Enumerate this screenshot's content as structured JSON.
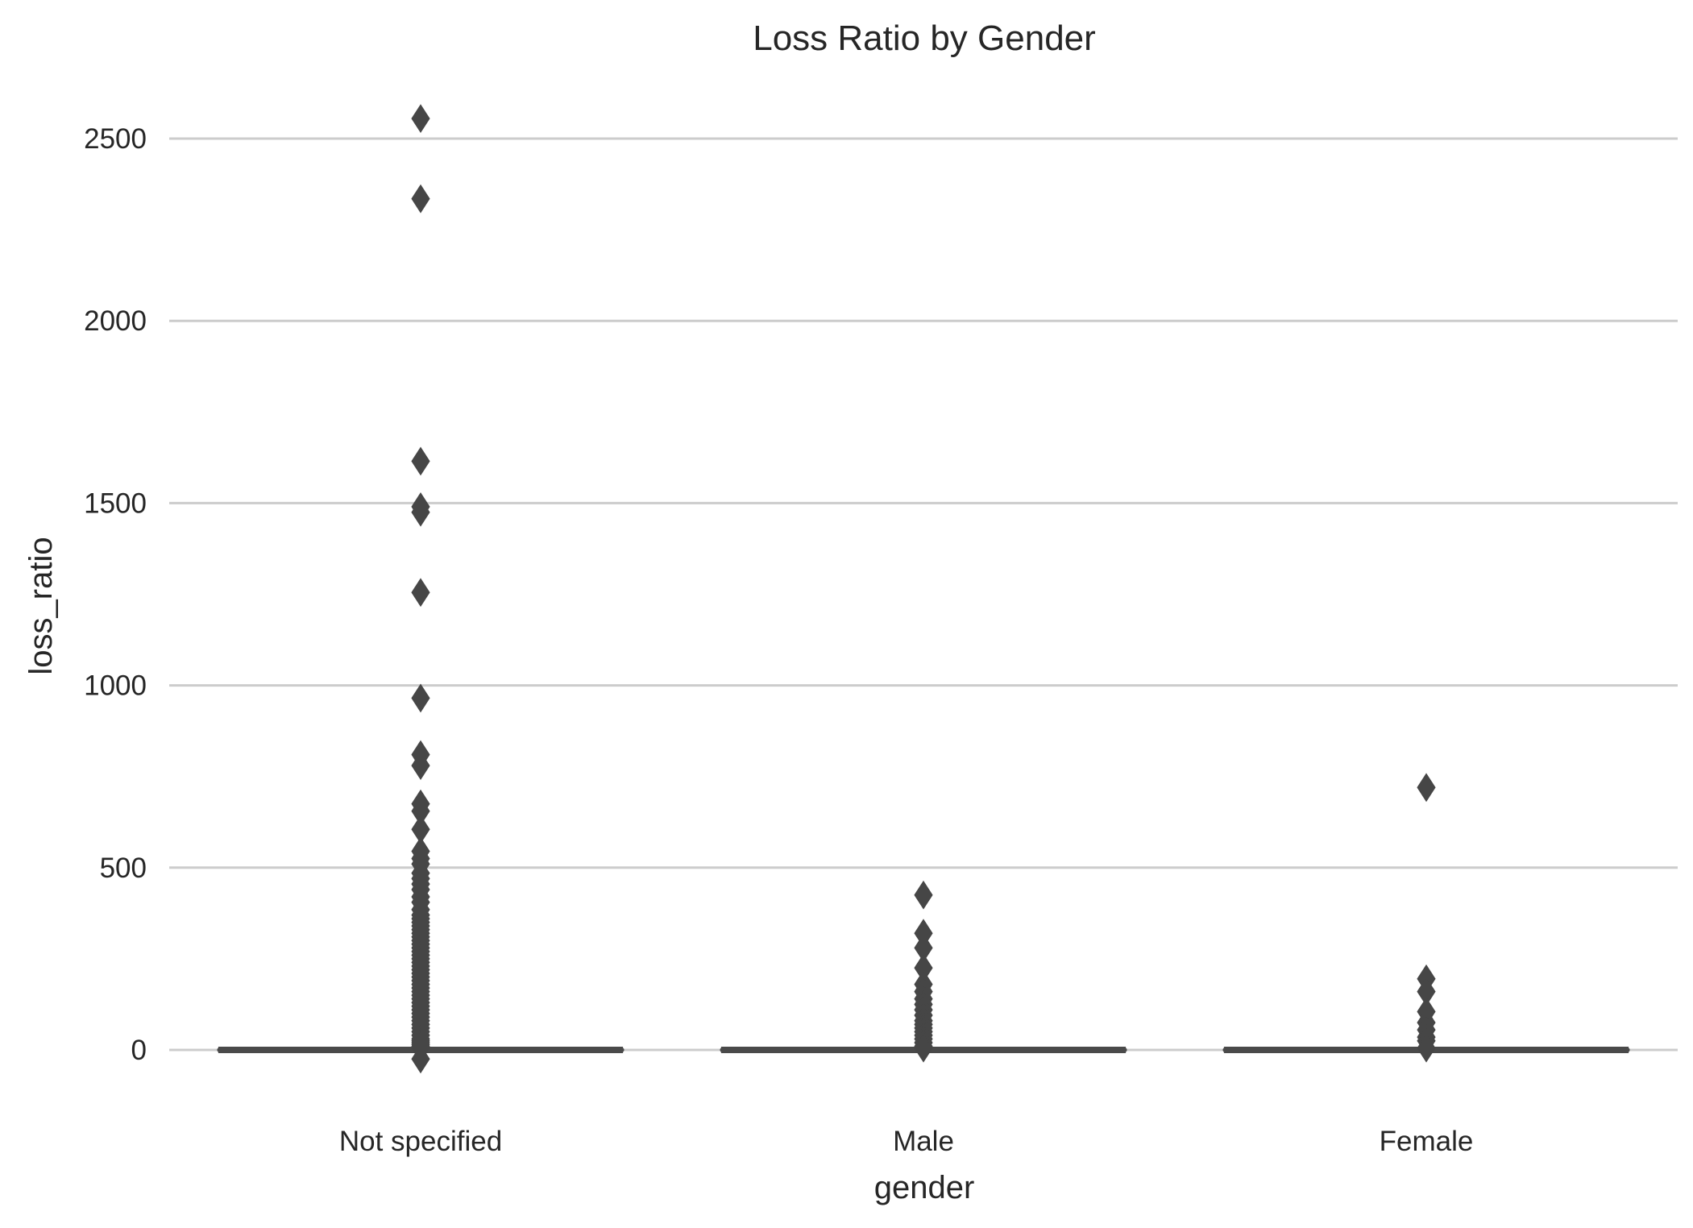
{
  "chart_data": {
    "type": "box",
    "title": "Loss Ratio by Gender",
    "xlabel": "gender",
    "ylabel": "loss_ratio",
    "categories": [
      "Not specified",
      "Male",
      "Female"
    ],
    "ylim": [
      -120,
      2660
    ],
    "yticks": [
      0,
      500,
      1000,
      1500,
      2000,
      2500
    ],
    "ytick_labels": [
      "0",
      "500",
      "1000",
      "1500",
      "2000",
      "2500"
    ],
    "grid": true,
    "grid_axis": "y",
    "legend": "none",
    "colors": {
      "box": "#4a4a4a",
      "outlier": "#464646",
      "grid": "#cccccc",
      "text": "#262626"
    },
    "boxes": [
      {
        "category": "Not specified",
        "whislo": 0,
        "q1": 0,
        "med": 0,
        "q3": 0,
        "whishi": 0,
        "outliers": [
          2555,
          2335,
          1615,
          1490,
          1475,
          1255,
          965,
          810,
          780,
          675,
          655,
          605,
          545,
          525,
          510,
          485,
          470,
          455,
          440,
          420,
          405,
          385,
          370,
          360,
          350,
          340,
          330,
          320,
          310,
          300,
          290,
          280,
          270,
          260,
          250,
          240,
          230,
          220,
          210,
          200,
          190,
          180,
          170,
          160,
          150,
          140,
          130,
          120,
          110,
          100,
          90,
          80,
          70,
          60,
          50,
          40,
          30,
          25,
          20,
          15,
          10,
          5,
          -25
        ]
      },
      {
        "category": "Male",
        "whislo": 0,
        "q1": 0,
        "med": 0,
        "q3": 0,
        "whishi": 0,
        "outliers": [
          425,
          320,
          280,
          225,
          180,
          160,
          140,
          125,
          110,
          95,
          80,
          70,
          60,
          50,
          40,
          30,
          20,
          10,
          5
        ]
      },
      {
        "category": "Female",
        "whislo": 0,
        "q1": 0,
        "med": 0,
        "q3": 0,
        "whishi": 0,
        "outliers": [
          720,
          195,
          160,
          105,
          75,
          55,
          35,
          25,
          5
        ]
      }
    ]
  }
}
